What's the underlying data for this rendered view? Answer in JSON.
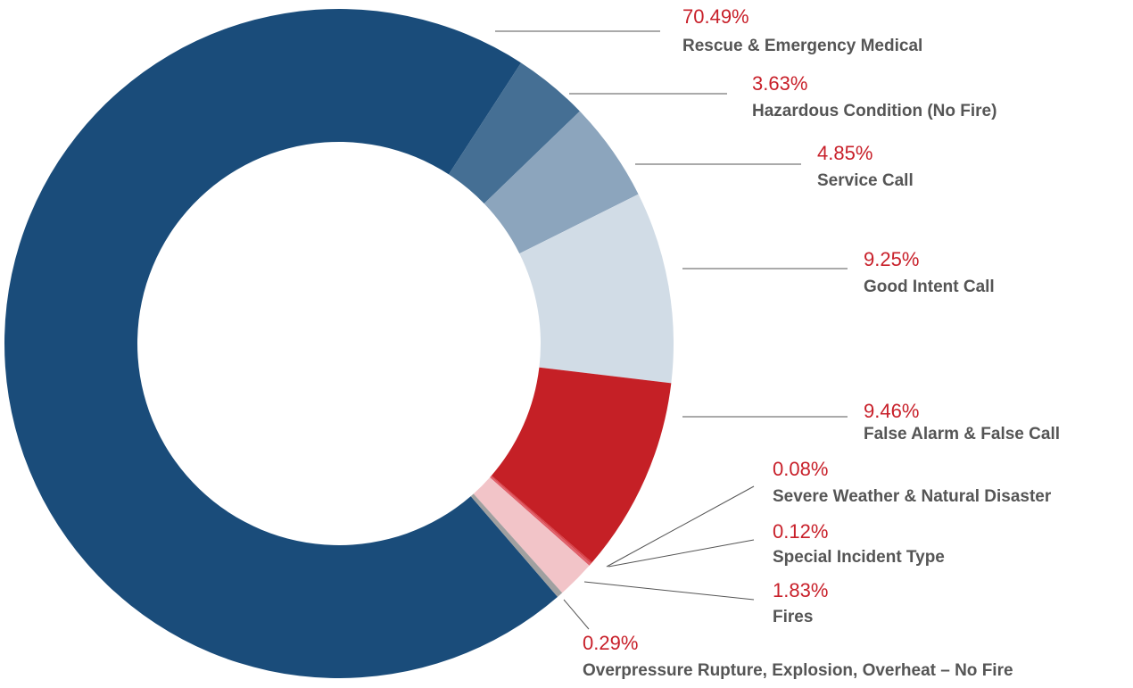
{
  "chart_data": {
    "type": "donut",
    "categories": [
      "Rescue & Emergency Medical",
      "Hazardous Condition (No Fire)",
      "Service Call",
      "Good Intent Call",
      "False Alarm & False Call",
      "Severe Weather & Natural Disaster",
      "Special Incident Type",
      "Fires",
      "Overpressure Rupture, Explosion, Overheat – No Fire"
    ],
    "values": [
      70.49,
      3.63,
      4.85,
      9.25,
      9.46,
      0.08,
      0.12,
      1.83,
      0.29
    ],
    "value_labels": [
      "70.49%",
      "3.63%",
      "4.85%",
      "9.25%",
      "9.46%",
      "0.08%",
      "0.12%",
      "1.83%",
      "0.29%"
    ],
    "colors": [
      "#1a4c7a",
      "#456f94",
      "#8ca5bd",
      "#d1dce6",
      "#c52026",
      "#d9434a",
      "#e0606a",
      "#f2c4c8",
      "#a0a0a0"
    ]
  }
}
